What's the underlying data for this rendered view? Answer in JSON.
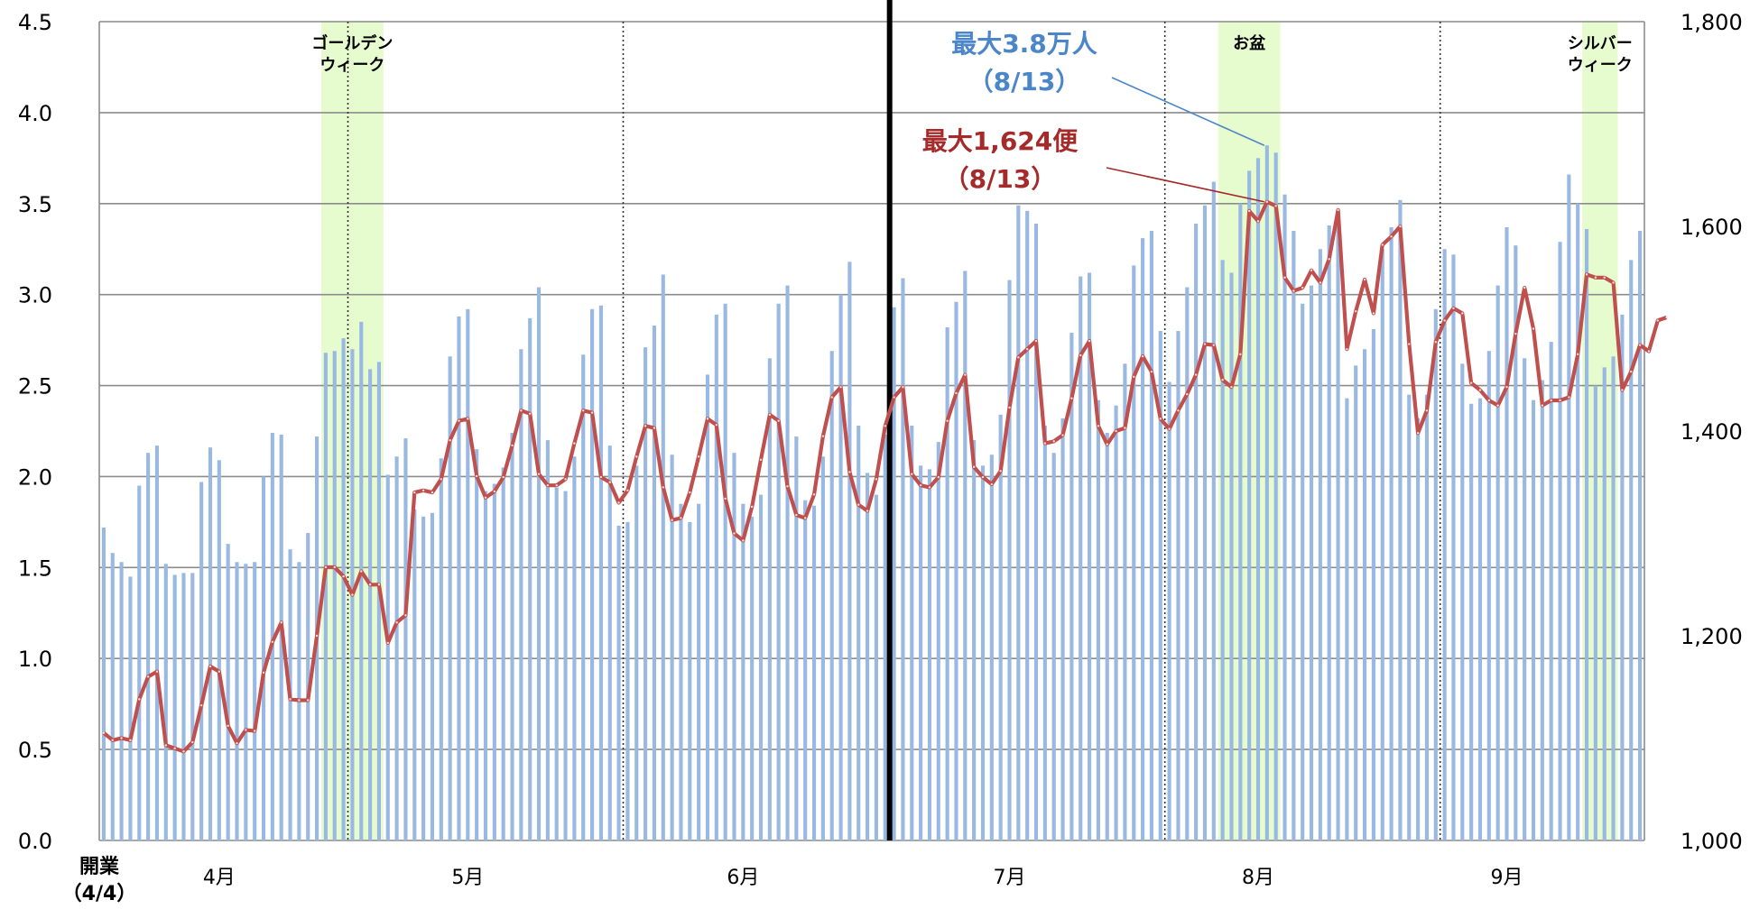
{
  "chart_data": {
    "type": "bar+line",
    "title": "",
    "y_left": {
      "ylim": [
        0,
        4.5
      ],
      "ticks": [
        "0.0",
        "0.5",
        "1.0",
        "1.5",
        "2.0",
        "2.5",
        "3.0",
        "3.5",
        "4.0",
        "4.5"
      ]
    },
    "y_right": {
      "ylim": [
        1000,
        1800
      ],
      "ticks": [
        "1,000",
        "1,200",
        "1,400",
        "1,600",
        "1,800"
      ]
    },
    "x_start_label": [
      "開業",
      "（4/4）"
    ],
    "months": [
      {
        "label": "4月",
        "day": 13
      },
      {
        "label": "5月",
        "day": 41
      },
      {
        "label": "6月",
        "day": 72
      },
      {
        "label": "7月",
        "day": 102
      },
      {
        "label": "8月",
        "day": 130
      },
      {
        "label": "9月",
        "day": 158
      }
    ],
    "month_dividers_day": [
      27.5,
      58.5,
      88.5,
      119.5,
      150.5
    ],
    "thick_divider_day": 88.5,
    "highlights": [
      {
        "label": [
          "ゴールデン",
          "ウィーク"
        ],
        "start": 24.5,
        "end": 31.5
      },
      {
        "label": [
          "お盆"
        ],
        "start": 125.5,
        "end": 132.5
      },
      {
        "label": [
          "シルバー",
          "ウィーク"
        ],
        "start": 166.5,
        "end": 170.5
      }
    ],
    "annotations": [
      {
        "lines": [
          "最大3.8万人",
          "（8/13）"
        ],
        "color": "#4a86c8",
        "target_day": 131,
        "target_series": "bars"
      },
      {
        "lines": [
          "最大1,624便",
          "（8/13）"
        ],
        "color": "#a52a2a",
        "target_day": 131,
        "target_series": "line"
      }
    ],
    "bar_color": "#99b9e2",
    "line_color": "#c0504d",
    "bar_values": [
      1.72,
      1.58,
      1.53,
      1.45,
      1.95,
      2.13,
      2.17,
      1.52,
      1.46,
      1.47,
      1.47,
      1.97,
      2.16,
      2.09,
      1.63,
      1.53,
      1.52,
      1.53,
      2.0,
      2.24,
      2.23,
      1.6,
      1.53,
      1.69,
      2.22,
      2.68,
      2.69,
      2.76,
      2.7,
      2.85,
      2.59,
      2.63,
      2.01,
      2.11,
      2.21,
      1.82,
      1.78,
      1.8,
      2.1,
      2.66,
      2.88,
      2.92,
      2.15,
      1.92,
      1.96,
      2.05,
      2.24,
      2.7,
      2.87,
      3.04,
      2.2,
      1.94,
      1.92,
      2.11,
      2.67,
      2.92,
      2.94,
      2.17,
      1.73,
      1.75,
      2.06,
      2.71,
      2.83,
      3.11,
      2.12,
      1.85,
      1.75,
      1.85,
      2.56,
      2.89,
      2.95,
      2.13,
      1.85,
      1.78,
      1.9,
      2.65,
      2.95,
      3.05,
      2.22,
      1.87,
      1.84,
      2.11,
      2.69,
      3.0,
      3.18,
      2.28,
      2.02,
      1.9,
      2.23,
      2.93,
      3.09,
      2.28,
      2.06,
      2.04,
      2.19,
      2.82,
      2.96,
      3.13,
      2.2,
      2.06,
      2.12,
      2.34,
      3.08,
      3.49,
      3.46,
      3.39,
      2.28,
      2.13,
      2.32,
      2.79,
      3.1,
      3.12,
      2.42,
      2.24,
      2.39,
      2.62,
      3.16,
      3.31,
      3.35,
      2.8,
      2.52,
      2.8,
      3.04,
      3.39,
      3.49,
      3.62,
      3.19,
      3.12,
      3.5,
      3.68,
      3.75,
      3.82,
      3.78,
      3.55,
      3.35,
      2.95,
      3.05,
      3.25,
      3.38,
      3.41,
      2.43,
      2.61,
      2.7,
      2.81,
      3.25,
      3.37,
      3.52,
      2.45,
      2.32,
      2.45,
      2.92,
      3.25,
      3.22,
      2.62,
      2.4,
      2.43,
      2.69,
      3.05,
      3.37,
      3.27,
      2.65,
      2.42,
      2.53,
      2.74,
      3.29,
      3.66,
      3.5,
      3.36,
      2.5,
      2.6,
      2.66,
      2.89,
      3.19,
      3.35
    ],
    "line_values": [
      1105,
      1098,
      1100,
      1098,
      1138,
      1160,
      1165,
      1093,
      1090,
      1087,
      1096,
      1132,
      1170,
      1165,
      1112,
      1095,
      1108,
      1107,
      1164,
      1194,
      1213,
      1138,
      1137,
      1137,
      1200,
      1267,
      1267,
      1258,
      1240,
      1263,
      1250,
      1250,
      1193,
      1213,
      1220,
      1340,
      1342,
      1340,
      1353,
      1391,
      1410,
      1412,
      1356,
      1335,
      1341,
      1355,
      1386,
      1420,
      1417,
      1358,
      1347,
      1347,
      1353,
      1388,
      1420,
      1418,
      1355,
      1350,
      1330,
      1342,
      1375,
      1405,
      1403,
      1345,
      1313,
      1315,
      1340,
      1375,
      1412,
      1406,
      1334,
      1300,
      1293,
      1326,
      1372,
      1416,
      1410,
      1346,
      1318,
      1315,
      1338,
      1395,
      1433,
      1443,
      1360,
      1328,
      1322,
      1353,
      1405,
      1433,
      1443,
      1358,
      1347,
      1345,
      1355,
      1410,
      1437,
      1455,
      1365,
      1355,
      1348,
      1361,
      1423,
      1472,
      1480,
      1488,
      1388,
      1390,
      1396,
      1432,
      1474,
      1488,
      1405,
      1387,
      1400,
      1403,
      1453,
      1473,
      1458,
      1412,
      1402,
      1420,
      1436,
      1455,
      1485,
      1484,
      1450,
      1443,
      1475,
      1615,
      1605,
      1624,
      1620,
      1550,
      1537,
      1540,
      1557,
      1545,
      1568,
      1616,
      1480,
      1517,
      1548,
      1515,
      1582,
      1590,
      1600,
      1485,
      1398,
      1420,
      1487,
      1508,
      1520,
      1515,
      1447,
      1440,
      1430,
      1425,
      1443,
      1495,
      1540,
      1500,
      1425,
      1430,
      1430,
      1433,
      1475,
      1553,
      1550,
      1550,
      1545,
      1440,
      1458,
      1484,
      1478,
      1508,
      1511
    ]
  }
}
